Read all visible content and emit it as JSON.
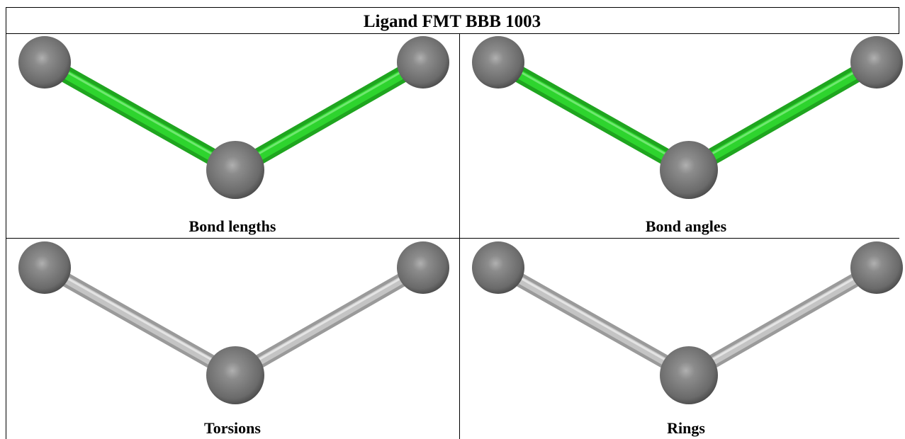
{
  "header": {
    "title": "Ligand FMT BBB 1003"
  },
  "panels": [
    {
      "caption": "Bond lengths"
    },
    {
      "caption": "Bond angles"
    },
    {
      "caption": "Torsions"
    },
    {
      "caption": "Rings"
    }
  ]
}
